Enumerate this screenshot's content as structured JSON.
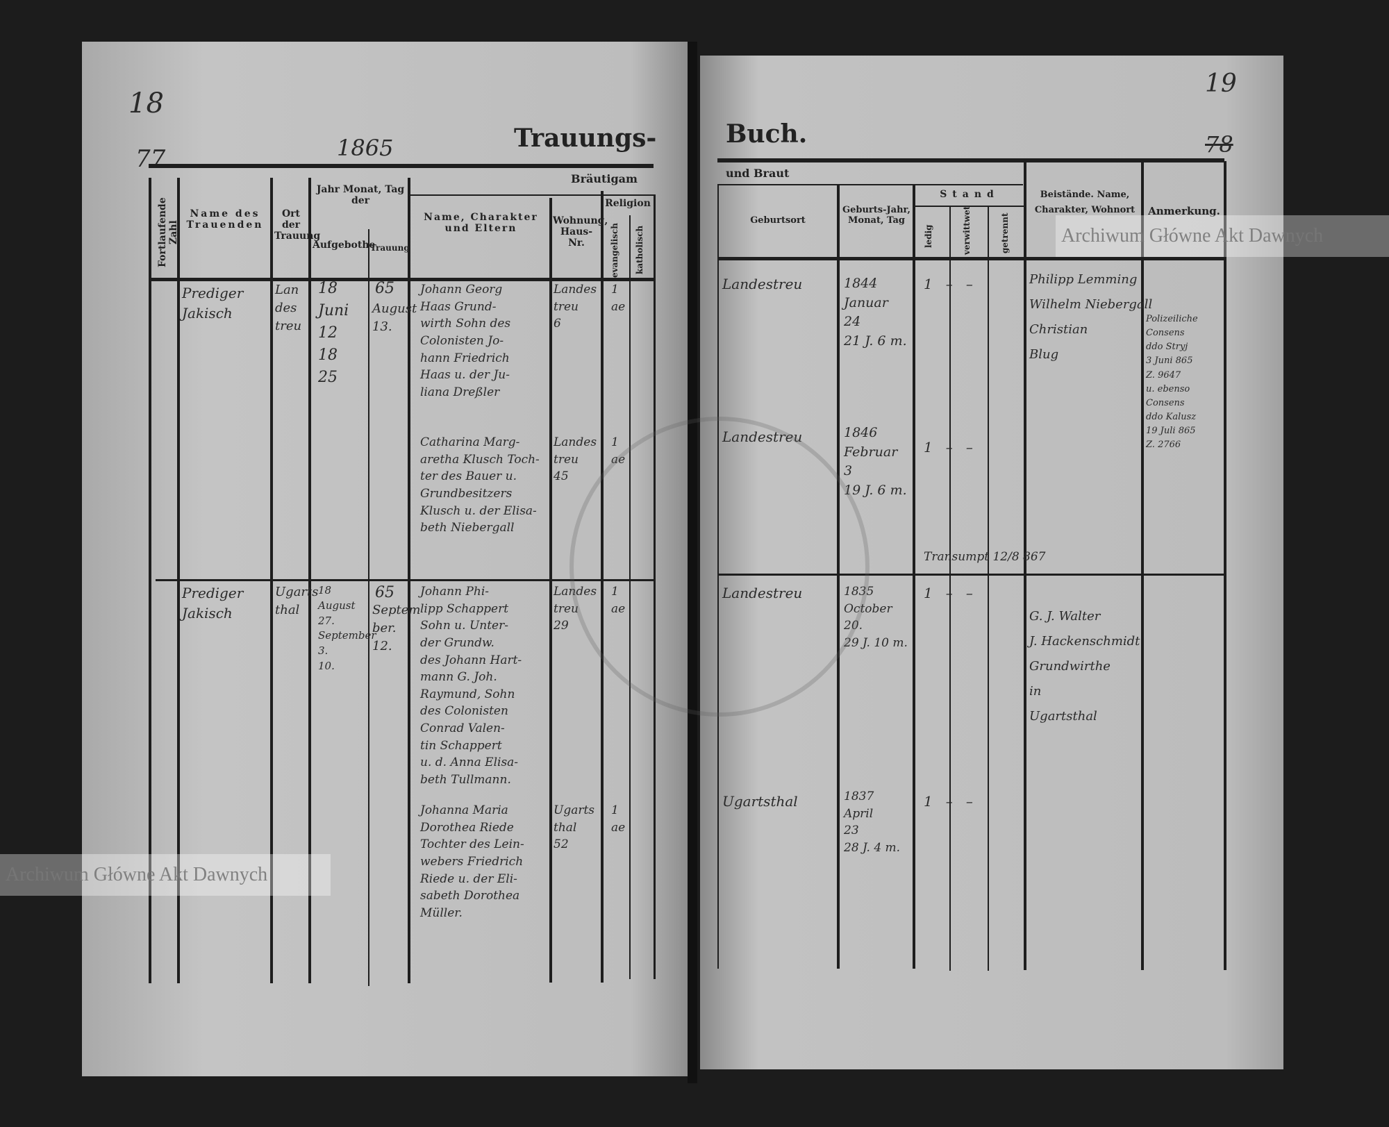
{
  "left_page": {
    "page_number": "18",
    "entry_mark": "77",
    "year": "1865",
    "title_part": "Trauungs-"
  },
  "right_page": {
    "page_number": "19",
    "entry_mark": "78",
    "title_part": "Buch."
  },
  "headers": {
    "groom": "Bräutigam",
    "bride": "und Braut",
    "serial": "Fortlaufende Zahl",
    "names": "Name des Trauenden",
    "place": "Ort der Trauung",
    "date": "Jahr Monat, Tag der",
    "banns": "Aufgebothe",
    "wedding": "Trauung",
    "name_parents": "Name, Charakter und Eltern",
    "residence": "Wohnung, Haus-Nr.",
    "religion": "Religion",
    "evangelical": "evangelisch",
    "catholic": "katholisch",
    "birthplace": "Geburtsort",
    "birth_date": "Geburts-Jahr, Monat, Tag",
    "status": "Stand",
    "single": "ledig",
    "widowed": "verwittwet",
    "separated": "getrennt",
    "witnesses": "Beistände. Name, Charakter, Wohnort",
    "remarks": "Anmerkung."
  },
  "entries": [
    {
      "officiant": "Prediger\nJakisch",
      "place": "Lan\ndes\ntreu",
      "banns": "18\nJuni\n12\n18\n25",
      "year": "65",
      "wedding": "August\n13.",
      "groom": "Johann Georg\nHaas Grund-\nwirth Sohn des\nColonisten Jo-\nhann Friedrich\nHaas u. der Ju-\nliana Dreßler",
      "groom_res": "Landes\ntreu\n6",
      "groom_rel": "1\nae",
      "groom_birthplace": "Landestreu",
      "groom_birth": "1844\nJanuar\n24\n21 J. 6 m.",
      "groom_status": "1   –   –",
      "bride": "Catharina Marg-\naretha Klusch Toch-\nter des Bauer u.\nGrundbesitzers\nKlusch u. der Elisa-\nbeth Niebergall",
      "bride_res": "Landes\ntreu\n45",
      "bride_rel": "1\nae",
      "bride_birthplace": "Landestreu",
      "bride_birth": "1846\nFebruar\n3\n19 J. 6 m.",
      "bride_status": "1   –   –",
      "witnesses": "Philipp Lemming\nWilhelm Niebergall\nChristian\nBlug",
      "remarks": "Polizeiliche\nConsens\nddo Stryj\n3 Juni 865\nZ. 9647\nu. ebenso\nConsens\nddo Kalusz\n19 Juli 865\nZ. 2766",
      "note": "Transumpt 12/8 867"
    },
    {
      "officiant": "Prediger\nJakisch",
      "place": "Ugarts\nthal",
      "banns": "18\nAugust\n27.\nSeptember\n3.\n10.",
      "year": "65",
      "wedding": "Septem\nber.\n12.",
      "groom": "Johann Phi-\nlipp Schappert\nSohn u. Unter-\nder Grundw.\ndes Johann Hart-\nmann G. Joh.\nRaymund, Sohn\ndes Colonisten\nConrad Valen-\ntin Schappert\nu. d. Anna Elisa-\nbeth Tullmann.",
      "groom_res": "Landes\ntreu\n29",
      "groom_rel": "1\nae",
      "groom_birthplace": "Landestreu",
      "groom_birth": "1835\nOctober\n20.\n29 J. 10 m.",
      "groom_status": "1   –   –",
      "bride": "Johanna Maria\nDorothea Riede\nTochter des Lein-\nwebers Friedrich\nRiede u. der Eli-\nsabeth Dorothea\nMüller.",
      "bride_res": "Ugarts\nthal\n52",
      "bride_rel": "1\nae",
      "bride_birthplace": "Ugartsthal",
      "bride_birth": "1837\nApril\n23\n28 J. 4 m.",
      "bride_status": "1   –   –",
      "witnesses": "G. J. Walter\nJ. Hackenschmidt\nGrundwirthe\nin\nUgartsthal",
      "remarks": "",
      "note": ""
    }
  ],
  "watermark": "Archiwum Główne Akt Dawnych",
  "colors": {
    "paper": "#bdbdbd",
    "ink": "#222222",
    "background": "#1c1c1c"
  }
}
